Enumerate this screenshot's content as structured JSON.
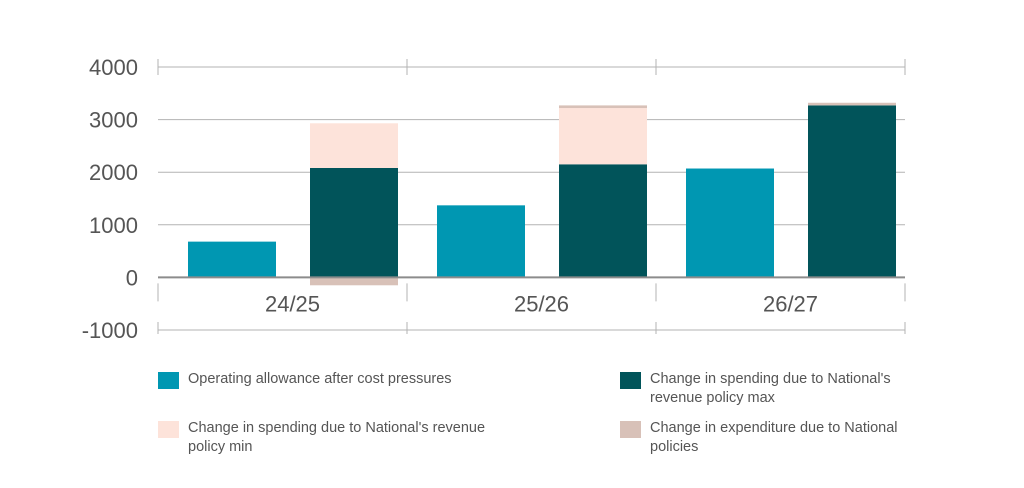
{
  "chart_data": {
    "type": "bar",
    "categories": [
      "24/25",
      "25/26",
      "26/27"
    ],
    "ylim": [
      -1000,
      4000
    ],
    "yticks": [
      "4000",
      "3000",
      "2000",
      "1000",
      "0",
      "-1000"
    ],
    "ytick_values": [
      4000,
      3000,
      2000,
      1000,
      0,
      -1000
    ],
    "grid": true,
    "legend_position": "bottom",
    "series": [
      {
        "name": "Operating allowance after cost pressures",
        "color": "#0097b2",
        "group": "a",
        "values": [
          680,
          1370,
          2070
        ]
      },
      {
        "name": "Change in spending due to National's revenue policy max",
        "color": "#01545a",
        "group": "b",
        "values": [
          2080,
          2150,
          3270
        ]
      },
      {
        "name": "Change in spending due to National's revenue policy min",
        "color": "#fde3da",
        "group": "b",
        "values": [
          850,
          1070,
          0
        ]
      },
      {
        "name": "Change in expenditure due to National policies",
        "color": "#d8c1b8",
        "group": "b",
        "values": [
          -150,
          50,
          50
        ]
      }
    ]
  }
}
